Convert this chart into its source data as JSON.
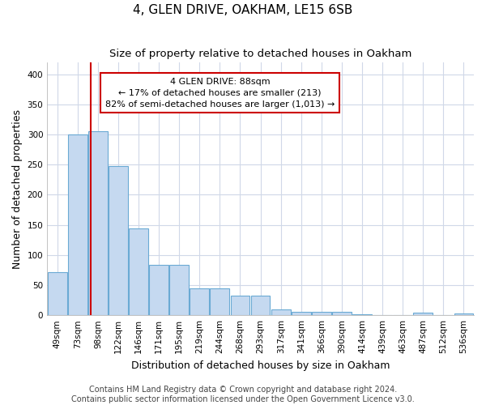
{
  "title_line1": "4, GLEN DRIVE, OAKHAM, LE15 6SB",
  "title_line2": "Size of property relative to detached houses in Oakham",
  "xlabel": "Distribution of detached houses by size in Oakham",
  "ylabel": "Number of detached properties",
  "categories": [
    "49sqm",
    "73sqm",
    "98sqm",
    "122sqm",
    "146sqm",
    "171sqm",
    "195sqm",
    "219sqm",
    "244sqm",
    "268sqm",
    "293sqm",
    "317sqm",
    "341sqm",
    "366sqm",
    "390sqm",
    "414sqm",
    "439sqm",
    "463sqm",
    "487sqm",
    "512sqm",
    "536sqm"
  ],
  "values": [
    72,
    300,
    305,
    248,
    144,
    83,
    83,
    45,
    44,
    32,
    32,
    9,
    6,
    6,
    6,
    2,
    0,
    0,
    4,
    0,
    3
  ],
  "bar_color": "#c5d9f0",
  "bar_edgecolor": "#6aaad4",
  "vline_color": "#cc0000",
  "annotation_text": "4 GLEN DRIVE: 88sqm\n← 17% of detached houses are smaller (213)\n82% of semi-detached houses are larger (1,013) →",
  "annotation_box_facecolor": "white",
  "annotation_box_edgecolor": "#cc0000",
  "ylim": [
    0,
    420
  ],
  "yticks": [
    0,
    50,
    100,
    150,
    200,
    250,
    300,
    350,
    400
  ],
  "footer_line1": "Contains HM Land Registry data © Crown copyright and database right 2024.",
  "footer_line2": "Contains public sector information licensed under the Open Government Licence v3.0.",
  "background_color": "#ffffff",
  "plot_background_color": "#ffffff",
  "grid_color": "#d0d8e8",
  "title_fontsize": 11,
  "subtitle_fontsize": 9.5,
  "axis_label_fontsize": 9,
  "tick_fontsize": 7.5,
  "annotation_fontsize": 8,
  "footer_fontsize": 7
}
